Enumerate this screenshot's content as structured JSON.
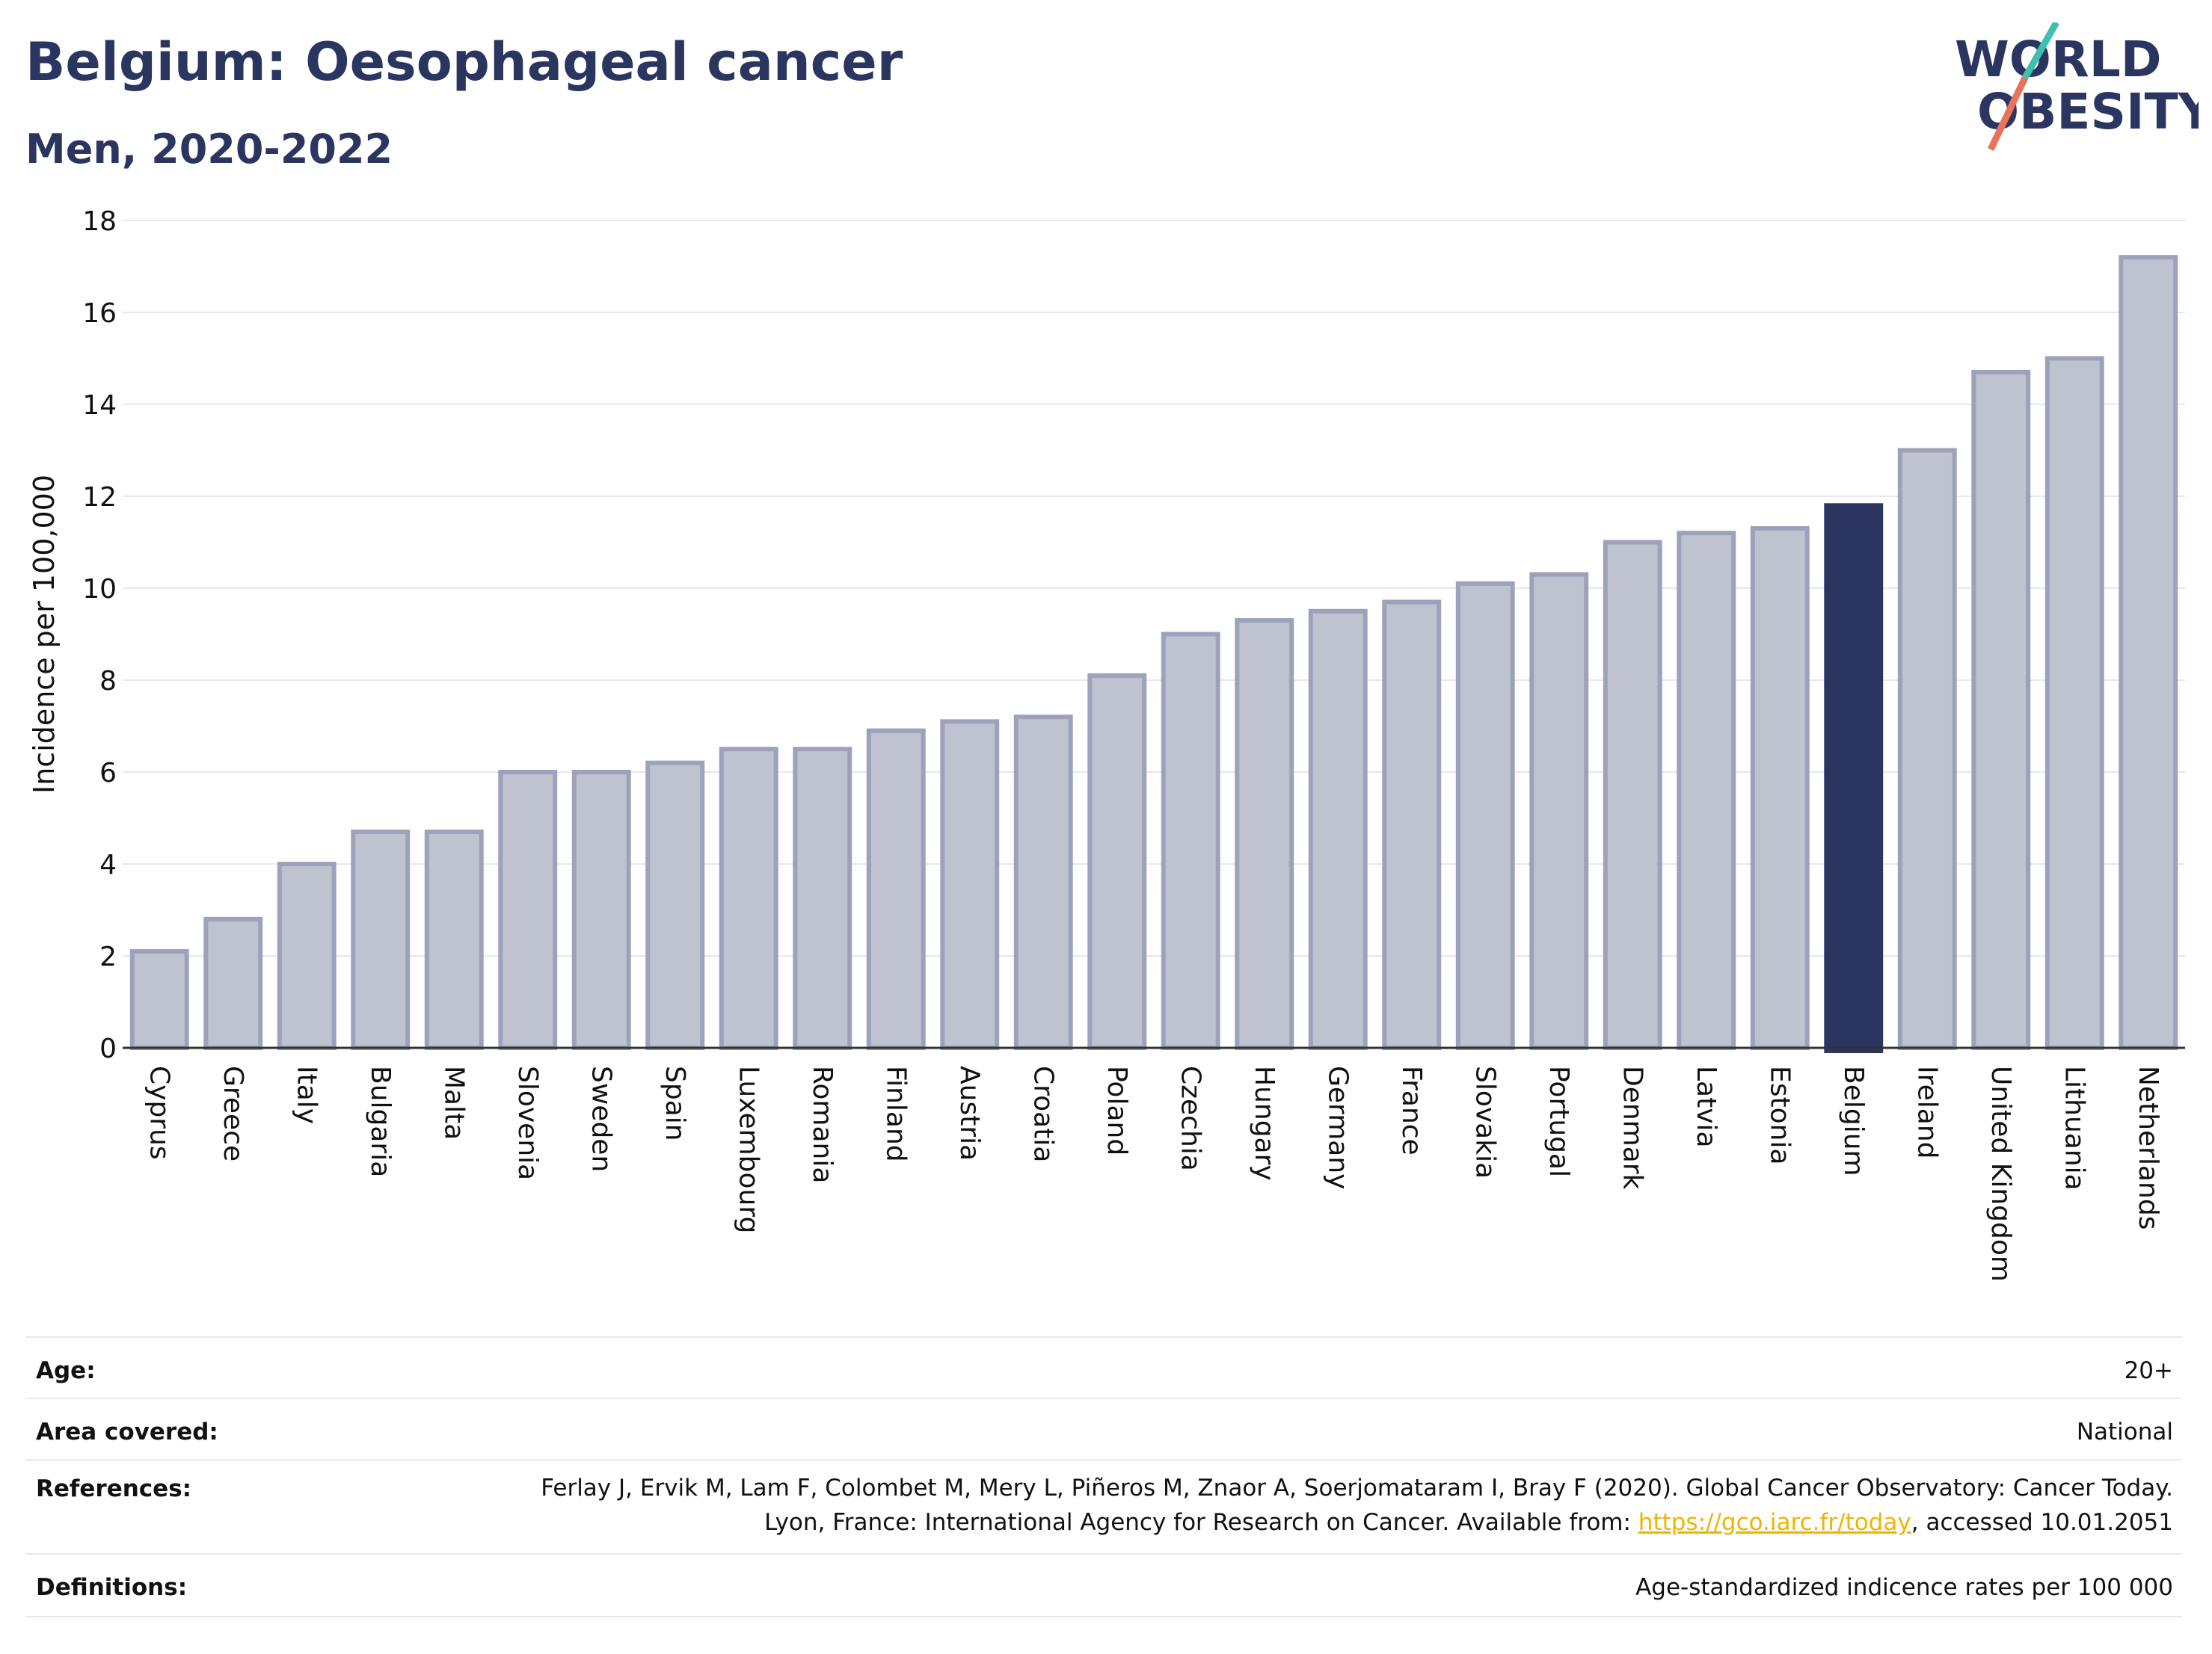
{
  "header": {
    "title": "Belgium: Oesophageal cancer",
    "subtitle": "Men, 2020-2022"
  },
  "logo": {
    "line1": "WORLD",
    "line2": "OBESITY",
    "slash_colors": [
      "#3fbfb0",
      "#e8735a"
    ],
    "text_color": "#2a3560"
  },
  "chart_data": {
    "type": "bar",
    "categories": [
      "Cyprus",
      "Greece",
      "Italy",
      "Bulgaria",
      "Malta",
      "Slovenia",
      "Sweden",
      "Spain",
      "Luxembourg",
      "Romania",
      "Finland",
      "Austria",
      "Croatia",
      "Poland",
      "Czechia",
      "Hungary",
      "Germany",
      "France",
      "Slovakia",
      "Portugal",
      "Denmark",
      "Latvia",
      "Estonia",
      "Belgium",
      "Ireland",
      "United Kingdom",
      "Lithuania",
      "Netherlands"
    ],
    "values": [
      2.1,
      2.8,
      4.0,
      4.7,
      4.7,
      6.0,
      6.0,
      6.2,
      6.5,
      6.5,
      6.9,
      7.1,
      7.2,
      8.1,
      9.0,
      9.3,
      9.5,
      9.7,
      10.1,
      10.3,
      11.0,
      11.2,
      11.3,
      11.8,
      13.0,
      14.7,
      15.0,
      17.2
    ],
    "highlight": "Belgium",
    "ylabel": "Incidence per 100,000",
    "ylim": [
      0,
      18
    ],
    "yticks": [
      0,
      2,
      4,
      6,
      8,
      10,
      12,
      14,
      16,
      18
    ],
    "grid": true,
    "colors": {
      "bar": "#bfc3d0",
      "bar_edge": "#9ba2ba",
      "highlight": "#2a3560",
      "grid": "#e6e8ef",
      "axis": "#333333"
    }
  },
  "info": {
    "age_label": "Age:",
    "age_value": "20+",
    "area_label": "Area covered:",
    "area_value": "National",
    "references_label": "References:",
    "references_text_1": "Ferlay J, Ervik M, Lam F, Colombet M, Mery L, Piñeros M, Znaor A, Soerjomataram I, Bray F (2020). Global Cancer Observatory: Cancer Today. Lyon, France: International Agency for Research on Cancer. Available from: ",
    "references_link": "https://gco.iarc.fr/today",
    "references_text_2": ", accessed 10.01.2051",
    "definitions_label": "Definitions:",
    "definitions_value": "Age-standardized indicence rates per 100 000"
  }
}
